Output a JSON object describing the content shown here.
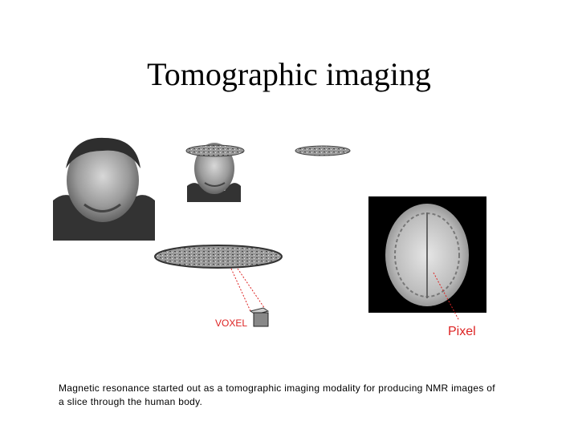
{
  "slide": {
    "title": "Tomographic imaging",
    "labels": {
      "voxel": "VOXEL",
      "pixel": "Pixel"
    },
    "caption": [
      "Magnetic resonance started out as a tomographic imaging modality for producing NMR images of",
      "a slice through the human body."
    ]
  }
}
